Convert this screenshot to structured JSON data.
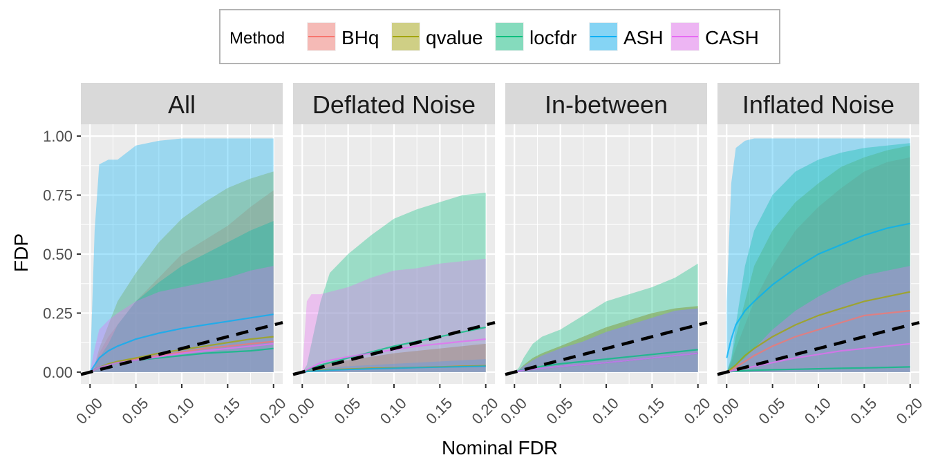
{
  "chart_data": {
    "type": "area",
    "xlabel": "Nominal FDR",
    "ylabel": "FDP",
    "xlim": [
      0.0,
      0.2
    ],
    "ylim": [
      0.0,
      1.0
    ],
    "x_ticks": [
      "0.00",
      "0.05",
      "0.10",
      "0.15",
      "0.20"
    ],
    "y_ticks": [
      "0.00",
      "0.25",
      "0.50",
      "0.75",
      "1.00"
    ],
    "x_tick_values": [
      0.0,
      0.05,
      0.1,
      0.15,
      0.2
    ],
    "y_tick_values": [
      0.0,
      0.25,
      0.5,
      0.75,
      1.0
    ],
    "grid": true,
    "legend": {
      "title": "Method",
      "placement": "top",
      "items": [
        {
          "name": "BHq",
          "color": "#F8766D"
        },
        {
          "name": "qvalue",
          "color": "#A3A500"
        },
        {
          "name": "locfdr",
          "color": "#00BF7D"
        },
        {
          "name": "ASH",
          "color": "#00B0F6"
        },
        {
          "name": "CASH",
          "color": "#E76BF3"
        }
      ]
    },
    "reference_line": {
      "style": "dashed",
      "color": "#000000",
      "x": [
        0.0,
        0.2
      ],
      "y": [
        0.0,
        0.2
      ]
    },
    "x": [
      0.0,
      0.005,
      0.01,
      0.02,
      0.03,
      0.05,
      0.075,
      0.1,
      0.125,
      0.15,
      0.175,
      0.2
    ],
    "panels": [
      {
        "title": "All",
        "series": [
          {
            "name": "BHq",
            "mean": [
              0,
              0.01,
              0.02,
              0.03,
              0.04,
              0.055,
              0.07,
              0.085,
              0.1,
              0.11,
              0.12,
              0.13
            ],
            "lower": [
              0,
              0,
              0,
              0,
              0,
              0,
              0,
              0,
              0,
              0,
              0,
              0
            ],
            "upper": [
              0,
              0.02,
              0.08,
              0.15,
              0.2,
              0.3,
              0.4,
              0.5,
              0.56,
              0.62,
              0.7,
              0.77
            ]
          },
          {
            "name": "qvalue",
            "mean": [
              0,
              0.01,
              0.02,
              0.035,
              0.045,
              0.06,
              0.08,
              0.095,
              0.11,
              0.125,
              0.14,
              0.15
            ],
            "lower": [
              0,
              0,
              0,
              0,
              0,
              0,
              0,
              0,
              0,
              0,
              0,
              0
            ],
            "upper": [
              0,
              0.03,
              0.1,
              0.2,
              0.3,
              0.42,
              0.55,
              0.65,
              0.72,
              0.78,
              0.82,
              0.85
            ]
          },
          {
            "name": "locfdr",
            "mean": [
              0,
              0.01,
              0.02,
              0.03,
              0.04,
              0.05,
              0.06,
              0.07,
              0.08,
              0.085,
              0.09,
              0.1
            ],
            "lower": [
              0,
              0,
              0,
              0,
              0,
              0,
              0,
              0,
              0,
              0,
              0,
              0
            ],
            "upper": [
              0,
              0.02,
              0.06,
              0.12,
              0.2,
              0.3,
              0.38,
              0.45,
              0.5,
              0.55,
              0.6,
              0.64
            ]
          },
          {
            "name": "ASH",
            "mean": [
              0,
              0.03,
              0.06,
              0.09,
              0.11,
              0.14,
              0.165,
              0.185,
              0.2,
              0.215,
              0.23,
              0.245
            ],
            "lower": [
              0,
              0,
              0,
              0,
              0,
              0,
              0,
              0,
              0,
              0,
              0,
              0
            ],
            "upper": [
              0,
              0.6,
              0.88,
              0.9,
              0.9,
              0.96,
              0.98,
              0.99,
              0.99,
              0.99,
              0.99,
              0.99
            ]
          },
          {
            "name": "CASH",
            "mean": [
              0,
              0.01,
              0.02,
              0.03,
              0.04,
              0.05,
              0.065,
              0.08,
              0.09,
              0.1,
              0.11,
              0.12
            ],
            "lower": [
              0,
              0,
              0,
              0,
              0,
              0,
              0,
              0,
              0,
              0,
              0,
              0
            ],
            "upper": [
              0,
              0.1,
              0.18,
              0.22,
              0.25,
              0.3,
              0.34,
              0.36,
              0.38,
              0.4,
              0.43,
              0.45
            ]
          }
        ]
      },
      {
        "title": "Deflated Noise",
        "series": [
          {
            "name": "BHq",
            "mean": [
              0,
              0.003,
              0.005,
              0.008,
              0.01,
              0.013,
              0.016,
              0.018,
              0.02,
              0.022,
              0.025,
              0.027
            ],
            "lower": [
              0,
              0,
              0,
              0,
              0,
              0,
              0,
              0,
              0,
              0,
              0,
              0
            ],
            "upper": [
              0,
              0.01,
              0.02,
              0.03,
              0.04,
              0.05,
              0.065,
              0.08,
              0.09,
              0.1,
              0.11,
              0.12
            ]
          },
          {
            "name": "qvalue",
            "mean": [
              0,
              0.003,
              0.005,
              0.008,
              0.01,
              0.013,
              0.016,
              0.018,
              0.02,
              0.022,
              0.025,
              0.027
            ],
            "lower": [
              0,
              0,
              0,
              0,
              0,
              0,
              0,
              0,
              0,
              0,
              0,
              0
            ],
            "upper": [
              0,
              0.01,
              0.02,
              0.03,
              0.04,
              0.05,
              0.065,
              0.08,
              0.09,
              0.1,
              0.11,
              0.12
            ]
          },
          {
            "name": "locfdr",
            "mean": [
              0,
              0.008,
              0.015,
              0.03,
              0.04,
              0.06,
              0.085,
              0.11,
              0.13,
              0.15,
              0.17,
              0.19
            ],
            "lower": [
              0,
              0,
              0,
              0,
              0,
              0,
              0,
              0,
              0,
              0,
              0,
              0
            ],
            "upper": [
              0,
              0.03,
              0.12,
              0.3,
              0.42,
              0.5,
              0.58,
              0.65,
              0.69,
              0.72,
              0.75,
              0.76
            ]
          },
          {
            "name": "ASH",
            "mean": [
              0,
              0.002,
              0.004,
              0.006,
              0.008,
              0.011,
              0.014,
              0.016,
              0.019,
              0.021,
              0.023,
              0.025
            ],
            "lower": [
              0,
              0,
              0,
              0,
              0,
              0,
              0,
              0,
              0,
              0,
              0,
              0
            ],
            "upper": [
              0,
              0.005,
              0.01,
              0.015,
              0.02,
              0.025,
              0.03,
              0.035,
              0.04,
              0.045,
              0.05,
              0.055
            ]
          },
          {
            "name": "CASH",
            "mean": [
              0,
              0.01,
              0.02,
              0.04,
              0.05,
              0.065,
              0.08,
              0.095,
              0.11,
              0.12,
              0.13,
              0.14
            ],
            "lower": [
              0,
              0,
              0,
              0,
              0,
              0,
              0,
              0,
              0,
              0,
              0,
              0
            ],
            "upper": [
              0,
              0.3,
              0.33,
              0.33,
              0.34,
              0.36,
              0.4,
              0.43,
              0.44,
              0.46,
              0.47,
              0.48
            ]
          }
        ]
      },
      {
        "title": "In-between",
        "series": [
          {
            "name": "BHq",
            "mean": [
              0,
              0.004,
              0.008,
              0.012,
              0.016,
              0.024,
              0.032,
              0.04,
              0.05,
              0.06,
              0.07,
              0.08
            ],
            "lower": [
              0,
              0,
              0,
              0,
              0,
              0,
              0,
              0,
              0,
              0,
              0,
              0
            ],
            "upper": [
              0,
              0.01,
              0.03,
              0.06,
              0.08,
              0.11,
              0.15,
              0.19,
              0.22,
              0.25,
              0.27,
              0.28
            ]
          },
          {
            "name": "qvalue",
            "mean": [
              0,
              0.004,
              0.008,
              0.012,
              0.016,
              0.024,
              0.032,
              0.04,
              0.05,
              0.06,
              0.07,
              0.08
            ],
            "lower": [
              0,
              0,
              0,
              0,
              0,
              0,
              0,
              0,
              0,
              0,
              0,
              0
            ],
            "upper": [
              0,
              0.01,
              0.03,
              0.06,
              0.08,
              0.11,
              0.15,
              0.19,
              0.22,
              0.25,
              0.27,
              0.28
            ]
          },
          {
            "name": "locfdr",
            "mean": [
              0,
              0.005,
              0.01,
              0.018,
              0.025,
              0.035,
              0.045,
              0.055,
              0.065,
              0.075,
              0.085,
              0.095
            ],
            "lower": [
              0,
              0,
              0,
              0,
              0,
              0,
              0,
              0,
              0,
              0,
              0,
              0
            ],
            "upper": [
              0,
              0.02,
              0.06,
              0.12,
              0.15,
              0.18,
              0.24,
              0.3,
              0.33,
              0.36,
              0.4,
              0.46
            ]
          },
          {
            "name": "ASH",
            "mean": [
              0,
              0.004,
              0.008,
              0.012,
              0.016,
              0.024,
              0.032,
              0.04,
              0.05,
              0.06,
              0.07,
              0.08
            ],
            "lower": [
              0,
              0,
              0,
              0,
              0,
              0,
              0,
              0,
              0,
              0,
              0,
              0
            ],
            "upper": [
              0,
              0.01,
              0.025,
              0.05,
              0.07,
              0.1,
              0.13,
              0.17,
              0.2,
              0.23,
              0.26,
              0.27
            ]
          },
          {
            "name": "CASH",
            "mean": [
              0,
              0.004,
              0.008,
              0.012,
              0.016,
              0.024,
              0.032,
              0.04,
              0.05,
              0.06,
              0.07,
              0.08
            ],
            "lower": [
              0,
              0,
              0,
              0,
              0,
              0,
              0,
              0,
              0,
              0,
              0,
              0
            ],
            "upper": [
              0,
              0.01,
              0.025,
              0.05,
              0.07,
              0.1,
              0.13,
              0.17,
              0.2,
              0.23,
              0.26,
              0.27
            ]
          }
        ]
      },
      {
        "title": "Inflated Noise",
        "series": [
          {
            "name": "BHq",
            "mean": [
              0,
              0.01,
              0.02,
              0.045,
              0.07,
              0.11,
              0.15,
              0.18,
              0.21,
              0.24,
              0.25,
              0.26
            ],
            "lower": [
              0,
              0,
              0,
              0,
              0,
              0,
              0,
              0,
              0,
              0,
              0,
              0
            ],
            "upper": [
              0,
              0.04,
              0.1,
              0.2,
              0.3,
              0.45,
              0.6,
              0.7,
              0.78,
              0.85,
              0.89,
              0.91
            ]
          },
          {
            "name": "qvalue",
            "mean": [
              0,
              0.015,
              0.03,
              0.07,
              0.1,
              0.15,
              0.2,
              0.24,
              0.27,
              0.3,
              0.32,
              0.34
            ],
            "lower": [
              0,
              0,
              0,
              0,
              0,
              0,
              0,
              0,
              0,
              0,
              0,
              0
            ],
            "upper": [
              0,
              0.05,
              0.15,
              0.3,
              0.45,
              0.6,
              0.72,
              0.8,
              0.87,
              0.91,
              0.94,
              0.96
            ]
          },
          {
            "name": "locfdr",
            "mean": [
              0,
              0.002,
              0.004,
              0.006,
              0.008,
              0.01,
              0.012,
              0.014,
              0.016,
              0.018,
              0.02,
              0.022
            ],
            "lower": [
              0,
              0,
              0,
              0,
              0,
              0,
              0,
              0,
              0,
              0,
              0,
              0
            ],
            "upper": [
              0,
              0.06,
              0.2,
              0.45,
              0.6,
              0.75,
              0.85,
              0.9,
              0.93,
              0.95,
              0.96,
              0.97
            ]
          },
          {
            "name": "ASH",
            "mean": [
              0.06,
              0.14,
              0.2,
              0.26,
              0.3,
              0.37,
              0.44,
              0.5,
              0.54,
              0.58,
              0.61,
              0.63
            ],
            "lower": [
              0,
              0,
              0,
              0,
              0,
              0,
              0,
              0,
              0,
              0,
              0,
              0
            ],
            "upper": [
              0.3,
              0.8,
              0.95,
              0.98,
              0.99,
              0.99,
              0.99,
              0.99,
              0.99,
              0.99,
              0.99,
              0.99
            ]
          },
          {
            "name": "CASH",
            "mean": [
              0,
              0.004,
              0.008,
              0.016,
              0.024,
              0.04,
              0.06,
              0.075,
              0.09,
              0.1,
              0.11,
              0.12
            ],
            "lower": [
              0,
              0,
              0,
              0,
              0,
              0,
              0,
              0,
              0,
              0,
              0,
              0
            ],
            "upper": [
              0,
              0.01,
              0.03,
              0.06,
              0.1,
              0.18,
              0.26,
              0.32,
              0.37,
              0.41,
              0.43,
              0.45
            ]
          }
        ]
      }
    ]
  }
}
